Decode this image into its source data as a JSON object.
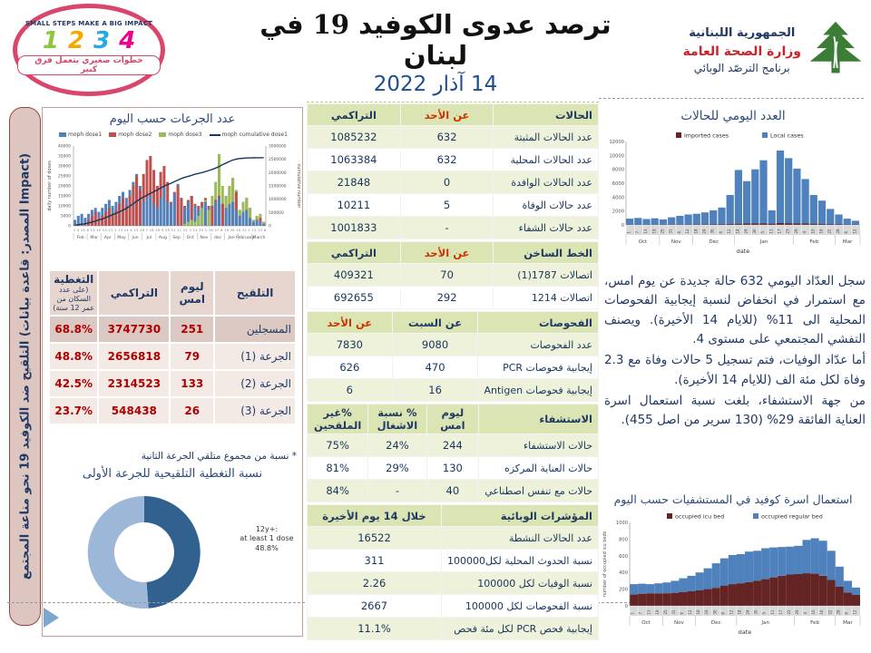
{
  "header": {
    "impact_logo": {
      "top_text": "SMALL STEPS MAKE A BIG IMPACT",
      "numbers": [
        "1",
        "2",
        "3",
        "4"
      ],
      "number_colors": [
        "#8dc63f",
        "#f5a800",
        "#27aae1",
        "#ec008c"
      ],
      "arabic_text": "خطوات صغيري بتعمل فرق كبير"
    },
    "title": "ترصد عدوى الكوفيد 19 في لبنان",
    "date": "14 آذار 2022",
    "moph_logo": {
      "line1": "الجمهورية اللبنانية",
      "line2": "وزارة الصحة العامة",
      "line3": "برنامج الترصّد الوبائي"
    }
  },
  "sidebar": {
    "label": "التلقيح ضد الكوفيد 19 نحو مناعة المجتمع (المصدر: قاعدة بيانات Impact)"
  },
  "vaccination": {
    "table": {
      "headers": [
        "التلقيح",
        "ليوم امس",
        "التراكمي",
        "التغطية"
      ],
      "coverage_subnote": "(على عدد السكان من عمر 12 سنة)",
      "rows": [
        [
          "المسجلين",
          "251",
          "3747730",
          "68.8%"
        ],
        [
          "الجرعة (1)",
          "79",
          "2656818",
          "48.8%"
        ],
        [
          "الجرعة (2)",
          "133",
          "2314523",
          "42.5%"
        ],
        [
          "الجرعة (3)",
          "26",
          "548438",
          "23.7%"
        ]
      ]
    },
    "footnote": "* نسبة من مجموع متلقي الجرعة الثانية"
  },
  "surveillance": {
    "sections": [
      {
        "header": [
          {
            "t": "الحالات",
            "c": "navy"
          },
          {
            "t": "عن الأحد",
            "c": "red"
          },
          {
            "t": "التراكمي",
            "c": "navy"
          }
        ],
        "rows": [
          [
            "عدد الحالات المثبتة",
            "632",
            "1085232"
          ],
          [
            "عدد الحالات المحلية",
            "632",
            "1063384"
          ],
          [
            "عدد الحالات الوافدة",
            "0",
            "21848"
          ],
          [
            "عدد حالات الوفاة",
            "5",
            "10211"
          ],
          [
            "عدد حالات الشفاء",
            "-",
            "1001833"
          ]
        ]
      },
      {
        "header": [
          {
            "t": "الخط الساخن",
            "c": "navy"
          },
          {
            "t": "عن الأحد",
            "c": "red"
          },
          {
            "t": "التراكمي",
            "c": "navy"
          }
        ],
        "rows": [
          [
            "اتصالات 1787(1)",
            "70",
            "409321"
          ],
          [
            "اتصالات 1214",
            "292",
            "692655"
          ]
        ]
      },
      {
        "header": [
          {
            "t": "الفحوصات",
            "c": "navy"
          },
          {
            "t": "عن السبت",
            "c": "navy"
          },
          {
            "t": "عن الأحد",
            "c": "red"
          }
        ],
        "rows": [
          [
            "عدد الفحوصات",
            "9080",
            "7830"
          ],
          [
            "إيجابية فحوصات PCR",
            "470",
            "626"
          ],
          [
            "إيجابية فحوصات Antigen",
            "16",
            "6"
          ]
        ]
      },
      {
        "header": [
          {
            "t": "الاستشفاء",
            "c": "navy"
          },
          {
            "t": "ليوم امس",
            "c": "navy"
          },
          {
            "t": "% نسبة الاشغال",
            "c": "navy"
          },
          {
            "t": "%غير الملقحين",
            "c": "navy"
          }
        ],
        "rows": [
          [
            "حالات الاستشفاء",
            "244",
            "24%",
            "75%"
          ],
          [
            "حالات العناية المركزه",
            "130",
            "29%",
            "81%"
          ],
          [
            "حالات مع تنفس اصطناعي",
            "40",
            "-",
            "84%"
          ]
        ]
      },
      {
        "header": [
          {
            "t": "المؤشرات الوبائية",
            "c": "navy"
          },
          {
            "t": "خلال 14 يوم الأخيرة",
            "c": "navy",
            "span": 2
          }
        ],
        "rows": [
          [
            "عدد الحالات النشطة",
            "16522"
          ],
          [
            "نسبة الحدوث المحلية لكل100000",
            "311"
          ],
          [
            "نسبة الوفيات لكل 100000",
            "2.26"
          ],
          [
            "نسبة الفحوصات لكل 100000",
            "2667"
          ],
          [
            "إيجابية فحص PCR لكل مئة فحص",
            "11.1%"
          ]
        ]
      }
    ]
  },
  "narrative": {
    "p1": "سجل العدّاد اليومي 632 حالة جديدة عن يوم امس، مع استمرار في انخفاض لنسبة إيجابية الفحوصات المحلية الى 11% (للايام 14 الأخيرة). ويصنف التفشي المجتمعي على مستوى 4.",
    "p2": "أما عدّاد الوفيات، فتم تسجيل 5 حالات وفاة مع 2.3 وفاة لكل مئة الف (للايام 14 الأخيرة).",
    "p3": "من جهة الاستشفاء، بلغت نسبة استعمال اسرة العناية الفائقة 29% (130 سرير من اصل 455)."
  },
  "chart_data": [
    {
      "id": "doses_by_day",
      "type": "bar",
      "title": "عدد الجرعات حسب اليوم",
      "legend": [
        "moph dose1",
        "moph dose2",
        "moph dose3",
        "moph cumulative dose1"
      ],
      "colors": [
        "#4f81bd",
        "#c0504d",
        "#9bbb59",
        "#17375e"
      ],
      "ylabel_left": "daily number of doses",
      "ylabel_right": "cumulative number",
      "ylim_left": [
        0,
        40000
      ],
      "ylim_right": [
        0,
        3000000
      ],
      "months": [
        "Feb",
        "Mar",
        "Apr",
        "May",
        "Jun",
        "Jul",
        "Aug",
        "Sep",
        "Oct",
        "Nov",
        "dec",
        "Jan",
        "February",
        "March"
      ],
      "day_ticks": "1 4 25 8 19 30 10 21 2 13 24 4 15 26 7 18 29 9 20 31 11 22 3 14 25 5 16 27 8 19 30 10 21 1 12 23 6",
      "dose1": [
        3000,
        5000,
        6000,
        4000,
        6000,
        8000,
        9000,
        7000,
        9000,
        11000,
        13000,
        10000,
        12000,
        15000,
        17000,
        14000,
        18000,
        22000,
        26000,
        20000,
        12000,
        14000,
        15000,
        11000,
        9000,
        14000,
        19000,
        12000,
        11000,
        16000,
        21000,
        14000,
        9000,
        12000,
        15000,
        10000,
        8000,
        10000,
        12000,
        9000,
        10000,
        12000,
        14000,
        11000,
        9000,
        11000,
        12000,
        8000,
        5000,
        7000,
        8000,
        4000,
        2000,
        3000,
        2000,
        1000
      ],
      "dose2": [
        500,
        1000,
        1000,
        500,
        3000,
        5000,
        7000,
        4000,
        5000,
        7000,
        9000,
        6000,
        8000,
        11000,
        14000,
        10000,
        15000,
        20000,
        25000,
        18000,
        26000,
        33000,
        35000,
        28000,
        20000,
        27000,
        30000,
        22000,
        12000,
        17000,
        20000,
        14000,
        10000,
        13000,
        15000,
        11000,
        10000,
        12000,
        14000,
        10000,
        10000,
        13000,
        15000,
        11000,
        15000,
        20000,
        24000,
        17000,
        8000,
        12000,
        14000,
        9000,
        3000,
        5000,
        4000,
        2000
      ],
      "dose3": [
        0,
        0,
        0,
        0,
        0,
        0,
        0,
        0,
        0,
        0,
        0,
        0,
        0,
        0,
        0,
        0,
        0,
        0,
        0,
        0,
        0,
        0,
        0,
        0,
        0,
        0,
        0,
        0,
        0,
        0,
        0,
        0,
        1000,
        2000,
        3000,
        2000,
        5000,
        9000,
        13000,
        8000,
        15000,
        22000,
        36000,
        20000,
        15000,
        20000,
        24000,
        18000,
        8000,
        12000,
        14000,
        9000,
        3000,
        5000,
        6000,
        2000
      ],
      "cumulative": [
        20000,
        40000,
        60000,
        80000,
        110000,
        140000,
        180000,
        220000,
        260000,
        310000,
        360000,
        420000,
        470000,
        530000,
        590000,
        660000,
        740000,
        830000,
        920000,
        1010000,
        1080000,
        1150000,
        1220000,
        1290000,
        1350000,
        1420000,
        1490000,
        1550000,
        1600000,
        1660000,
        1720000,
        1780000,
        1820000,
        1860000,
        1900000,
        1940000,
        1970000,
        2000000,
        2040000,
        2080000,
        2120000,
        2170000,
        2230000,
        2300000,
        2360000,
        2420000,
        2470000,
        2510000,
        2530000,
        2540000,
        2550000,
        2555000,
        2558000,
        2560000,
        2561000,
        2562000
      ]
    },
    {
      "id": "daily_cases",
      "type": "bar",
      "title": "العدد اليومي للحالات",
      "legend": [
        "imported cases",
        "Local cases"
      ],
      "colors": [
        "#632423",
        "#4f81bd"
      ],
      "xlabel": "date",
      "ylim": [
        0,
        12000
      ],
      "months": [
        {
          "label": "Oct",
          "span": 4
        },
        {
          "label": "Nov",
          "span": 4
        },
        {
          "label": "Dec",
          "span": 5
        },
        {
          "label": "Jan",
          "span": 7
        },
        {
          "label": "Feb",
          "span": 5
        },
        {
          "label": "Mar",
          "span": 3
        }
      ],
      "day_ticks": [
        "1",
        "7",
        "13",
        "19",
        "25",
        "31",
        "6",
        "12",
        "18",
        "24",
        "30",
        "6",
        "12",
        "18",
        "24",
        "30",
        "5",
        "11",
        "17",
        "23",
        "29",
        "4",
        "10",
        "16",
        "22",
        "28",
        "6",
        "12"
      ],
      "local": [
        900,
        1000,
        850,
        950,
        800,
        1100,
        1300,
        1500,
        1600,
        1800,
        2100,
        2500,
        4300,
        7900,
        6300,
        8000,
        9300,
        2100,
        10700,
        9600,
        8100,
        6600,
        4300,
        3500,
        2300,
        1500,
        900,
        600
      ],
      "imported": [
        30,
        30,
        30,
        30,
        40,
        40,
        40,
        50,
        60,
        70,
        90,
        110,
        130,
        160,
        190,
        210,
        210,
        160,
        260,
        230,
        210,
        190,
        160,
        130,
        110,
        90,
        70,
        50
      ]
    },
    {
      "id": "occupied_beds",
      "type": "stacked-bar",
      "title": "استعمال اسرة كوفيد في المستشفيات حسب اليوم",
      "legend": [
        "occupied icu bed",
        "occupied regular bed"
      ],
      "colors": [
        "#632423",
        "#4f81bd"
      ],
      "xlabel": "date",
      "ylabel": "number of occupied icu beds",
      "ylim": [
        0,
        1000
      ],
      "months": [
        {
          "label": "Oct",
          "span": 4
        },
        {
          "label": "Nov",
          "span": 4
        },
        {
          "label": "Dec",
          "span": 5
        },
        {
          "label": "Jan",
          "span": 7
        },
        {
          "label": "Feb",
          "span": 5
        },
        {
          "label": "Mar",
          "span": 3
        }
      ],
      "day_ticks": [
        "1",
        "7",
        "13",
        "19",
        "25",
        "31",
        "6",
        "12",
        "18",
        "24",
        "30",
        "6",
        "12",
        "18",
        "24",
        "30",
        "5",
        "11",
        "17",
        "23",
        "29",
        "4",
        "10",
        "16",
        "22",
        "28",
        "6",
        "12"
      ],
      "icu": [
        135,
        145,
        150,
        148,
        150,
        155,
        165,
        175,
        185,
        200,
        215,
        240,
        260,
        270,
        285,
        300,
        320,
        340,
        360,
        375,
        380,
        390,
        385,
        360,
        310,
        230,
        160,
        130
      ],
      "total": [
        260,
        265,
        260,
        270,
        280,
        300,
        330,
        360,
        400,
        450,
        510,
        570,
        610,
        620,
        650,
        660,
        690,
        700,
        705,
        710,
        720,
        790,
        810,
        780,
        660,
        470,
        300,
        220
      ]
    },
    {
      "id": "first_dose_coverage",
      "type": "donut",
      "title": "نسبة التغطية التلقيحية للجرعة الأولى",
      "label": "12y+: at least 1 dose",
      "value_pct": 48.8,
      "value_text": "48.8%",
      "colors": [
        "#31618f",
        "#9db7d8"
      ]
    }
  ]
}
